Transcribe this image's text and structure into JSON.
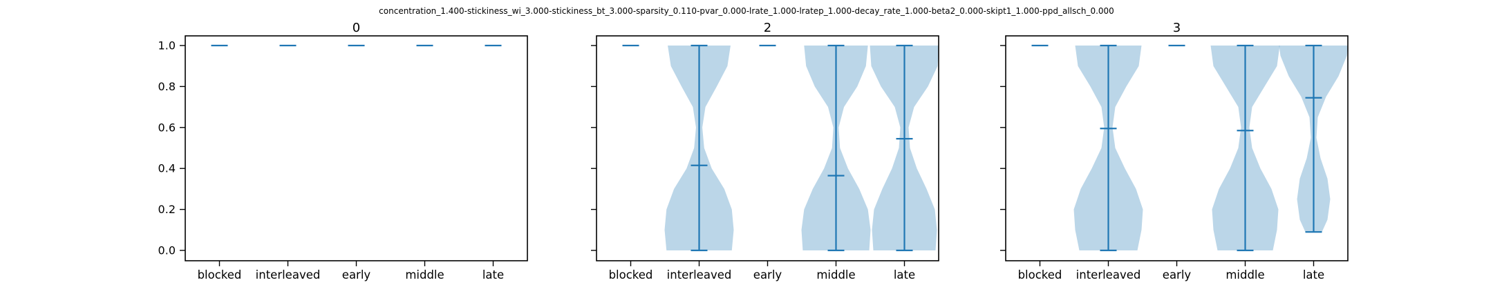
{
  "suptitle": "concentration_1.400-stickiness_wi_3.000-stickiness_bt_3.000-sparsity_0.110-pvar_0.000-lrate_1.000-lratep_1.000-decay_rate_1.000-beta2_0.000-skipt1_1.000-ppd_allsch_0.000",
  "chart_data": [
    {
      "type": "violin",
      "title": "0",
      "categories": [
        "blocked",
        "interleaved",
        "early",
        "middle",
        "late"
      ],
      "ylim": [
        0,
        1
      ],
      "yticks": [
        "0.0",
        "0.2",
        "0.4",
        "0.6",
        "0.8",
        "1.0"
      ],
      "series": [
        {
          "category": "blocked",
          "min": 1.0,
          "max": 1.0,
          "mean": 1.0
        },
        {
          "category": "interleaved",
          "min": 1.0,
          "max": 1.0,
          "mean": 1.0
        },
        {
          "category": "early",
          "min": 1.0,
          "max": 1.0,
          "mean": 1.0
        },
        {
          "category": "middle",
          "min": 1.0,
          "max": 1.0,
          "mean": 1.0
        },
        {
          "category": "late",
          "min": 1.0,
          "max": 1.0,
          "mean": 1.0
        }
      ]
    },
    {
      "type": "violin",
      "title": "2",
      "categories": [
        "blocked",
        "interleaved",
        "early",
        "middle",
        "late"
      ],
      "ylim": [
        0,
        1
      ],
      "yticks": [
        "0.0",
        "0.2",
        "0.4",
        "0.6",
        "0.8",
        "1.0"
      ],
      "series": [
        {
          "category": "blocked",
          "min": 1.0,
          "max": 1.0,
          "mean": 1.0
        },
        {
          "category": "interleaved",
          "min": 0.0,
          "max": 1.0,
          "mean": 0.415,
          "density": [
            [
              0.0,
              0.52
            ],
            [
              0.1,
              0.55
            ],
            [
              0.2,
              0.52
            ],
            [
              0.3,
              0.4
            ],
            [
              0.4,
              0.2
            ],
            [
              0.5,
              0.08
            ],
            [
              0.6,
              0.05
            ],
            [
              0.7,
              0.1
            ],
            [
              0.8,
              0.28
            ],
            [
              0.9,
              0.45
            ],
            [
              1.0,
              0.5
            ]
          ]
        },
        {
          "category": "early",
          "min": 1.0,
          "max": 1.0,
          "mean": 1.0
        },
        {
          "category": "middle",
          "min": 0.0,
          "max": 1.0,
          "mean": 0.365,
          "density": [
            [
              0.0,
              0.5
            ],
            [
              0.1,
              0.52
            ],
            [
              0.2,
              0.48
            ],
            [
              0.3,
              0.35
            ],
            [
              0.4,
              0.18
            ],
            [
              0.5,
              0.06
            ],
            [
              0.6,
              0.04
            ],
            [
              0.7,
              0.12
            ],
            [
              0.8,
              0.32
            ],
            [
              0.9,
              0.45
            ],
            [
              1.0,
              0.48
            ]
          ]
        },
        {
          "category": "late",
          "min": 0.0,
          "max": 1.0,
          "mean": 0.545,
          "density": [
            [
              0.0,
              0.45
            ],
            [
              0.1,
              0.47
            ],
            [
              0.2,
              0.44
            ],
            [
              0.3,
              0.32
            ],
            [
              0.4,
              0.18
            ],
            [
              0.5,
              0.08
            ],
            [
              0.6,
              0.06
            ],
            [
              0.7,
              0.14
            ],
            [
              0.8,
              0.34
            ],
            [
              0.9,
              0.48
            ],
            [
              1.0,
              0.5
            ]
          ]
        }
      ]
    },
    {
      "type": "violin",
      "title": "3",
      "categories": [
        "blocked",
        "interleaved",
        "early",
        "middle",
        "late"
      ],
      "ylim": [
        0,
        1
      ],
      "yticks": [
        "0.0",
        "0.2",
        "0.4",
        "0.6",
        "0.8",
        "1.0"
      ],
      "series": [
        {
          "category": "blocked",
          "min": 1.0,
          "max": 1.0,
          "mean": 1.0
        },
        {
          "category": "interleaved",
          "min": 0.0,
          "max": 1.0,
          "mean": 0.595,
          "density": [
            [
              0.0,
              0.42
            ],
            [
              0.1,
              0.48
            ],
            [
              0.2,
              0.5
            ],
            [
              0.3,
              0.4
            ],
            [
              0.4,
              0.24
            ],
            [
              0.5,
              0.1
            ],
            [
              0.6,
              0.06
            ],
            [
              0.7,
              0.1
            ],
            [
              0.8,
              0.26
            ],
            [
              0.9,
              0.44
            ],
            [
              1.0,
              0.48
            ]
          ]
        },
        {
          "category": "early",
          "min": 1.0,
          "max": 1.0,
          "mean": 1.0
        },
        {
          "category": "middle",
          "min": 0.0,
          "max": 1.0,
          "mean": 0.585,
          "density": [
            [
              0.0,
              0.4
            ],
            [
              0.1,
              0.46
            ],
            [
              0.2,
              0.48
            ],
            [
              0.3,
              0.38
            ],
            [
              0.4,
              0.22
            ],
            [
              0.5,
              0.1
            ],
            [
              0.6,
              0.06
            ],
            [
              0.7,
              0.1
            ],
            [
              0.8,
              0.28
            ],
            [
              0.9,
              0.46
            ],
            [
              1.0,
              0.5
            ]
          ]
        },
        {
          "category": "late",
          "min": 0.09,
          "max": 1.0,
          "mean": 0.745,
          "density": [
            [
              0.09,
              0.12
            ],
            [
              0.15,
              0.2
            ],
            [
              0.25,
              0.24
            ],
            [
              0.35,
              0.2
            ],
            [
              0.45,
              0.1
            ],
            [
              0.55,
              0.04
            ],
            [
              0.65,
              0.06
            ],
            [
              0.75,
              0.18
            ],
            [
              0.85,
              0.36
            ],
            [
              0.95,
              0.48
            ],
            [
              1.0,
              0.5
            ]
          ]
        }
      ]
    }
  ]
}
